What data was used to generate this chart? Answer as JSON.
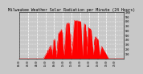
{
  "title": "Milwaukee Weather Solar Radiation per Minute (24 Hours)",
  "bg_color": "#c8c8c8",
  "plot_bg_color": "#c8c8c8",
  "bar_color": "#ff0000",
  "grid_color": "#ffffff",
  "ylim": [
    0,
    1000
  ],
  "yticks": [
    100,
    200,
    300,
    400,
    500,
    600,
    700,
    800,
    900,
    1000
  ],
  "num_points": 1440,
  "title_fontsize": 3.5
}
